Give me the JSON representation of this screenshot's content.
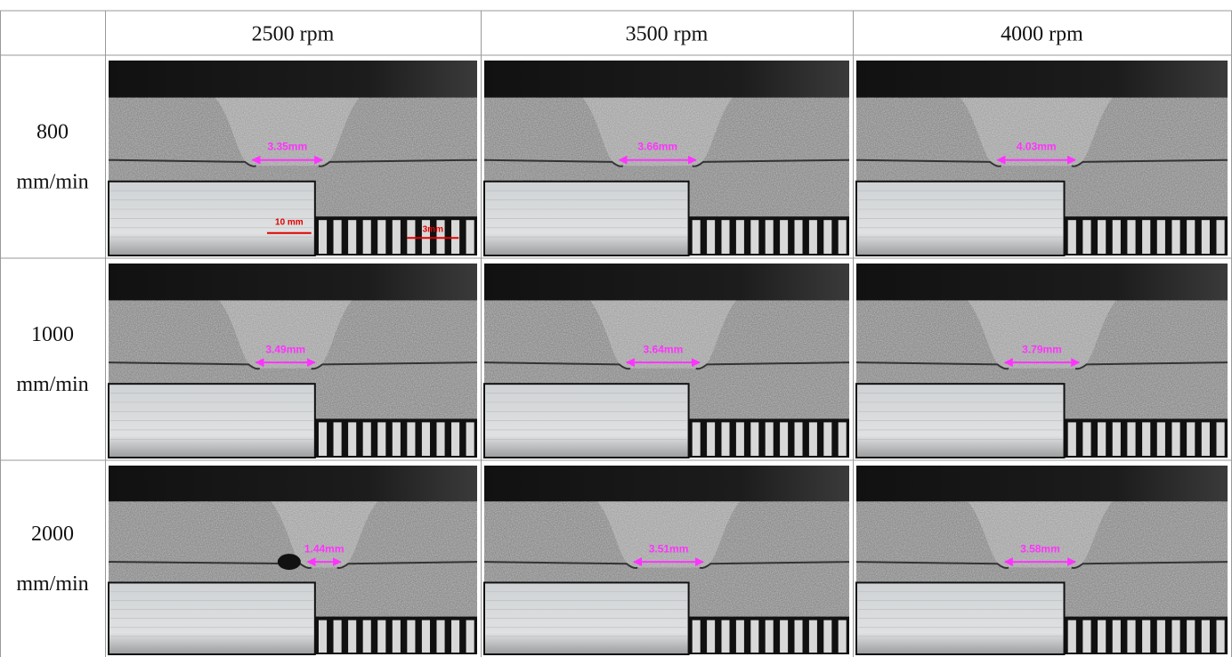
{
  "table": {
    "columns": [
      "2500 rpm",
      "3500 rpm",
      "4000 rpm"
    ],
    "rows": [
      {
        "speed": "800",
        "unit": "mm/min",
        "cells": [
          {
            "width": "3.35mm",
            "scale_inset": "10 mm",
            "scale_main": "3mm"
          },
          {
            "width": "3.66mm"
          },
          {
            "width": "4.03mm"
          }
        ]
      },
      {
        "speed": "1000",
        "unit": "mm/min",
        "cells": [
          {
            "width": "3.49mm"
          },
          {
            "width": "3.64mm"
          },
          {
            "width": "3.79mm"
          }
        ]
      },
      {
        "speed": "2000",
        "unit": "mm/min",
        "cells": [
          {
            "width": "1.44mm"
          },
          {
            "width": "3.51mm"
          },
          {
            "width": "3.58mm"
          }
        ]
      }
    ]
  }
}
